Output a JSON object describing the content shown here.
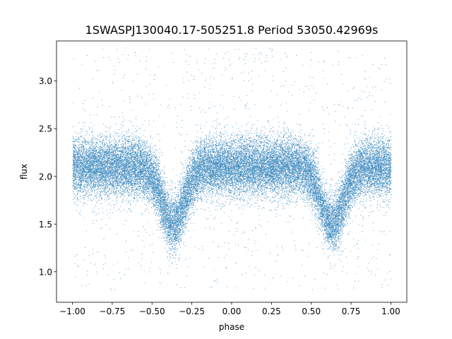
{
  "chart_data": {
    "type": "scatter",
    "title": "1SWASPJ130040.17-505251.8 Period 53050.42969s",
    "xlabel": "phase",
    "ylabel": "flux",
    "xlim": [
      -1.1,
      1.1
    ],
    "ylim": [
      0.68,
      3.42
    ],
    "x_ticks": [
      -1.0,
      -0.75,
      -0.5,
      -0.25,
      0.0,
      0.25,
      0.5,
      0.75,
      1.0
    ],
    "x_tick_labels": [
      "−1.00",
      "−0.75",
      "−0.50",
      "−0.25",
      "0.00",
      "0.25",
      "0.50",
      "0.75",
      "1.00"
    ],
    "y_ticks": [
      1.0,
      1.5,
      2.0,
      2.5,
      3.0
    ],
    "y_tick_labels": [
      "1.0",
      "1.5",
      "2.0",
      "2.5",
      "3.0"
    ],
    "grid": false,
    "marker_color": "#1f77b4",
    "series": [
      {
        "description": "folded light curve; baseline near 2.1 with dips at phase -0.37 and 0.63",
        "baseline_flux": 2.1,
        "baseline_scatter": 0.15,
        "eclipse_centers": [
          -0.37,
          0.63
        ],
        "eclipse_min_flux": 1.5,
        "eclipse_half_width": 0.07,
        "x_range": [
          -1.0,
          1.0
        ],
        "outlier_range": [
          0.8,
          3.35
        ],
        "n_points": 30000
      }
    ]
  }
}
